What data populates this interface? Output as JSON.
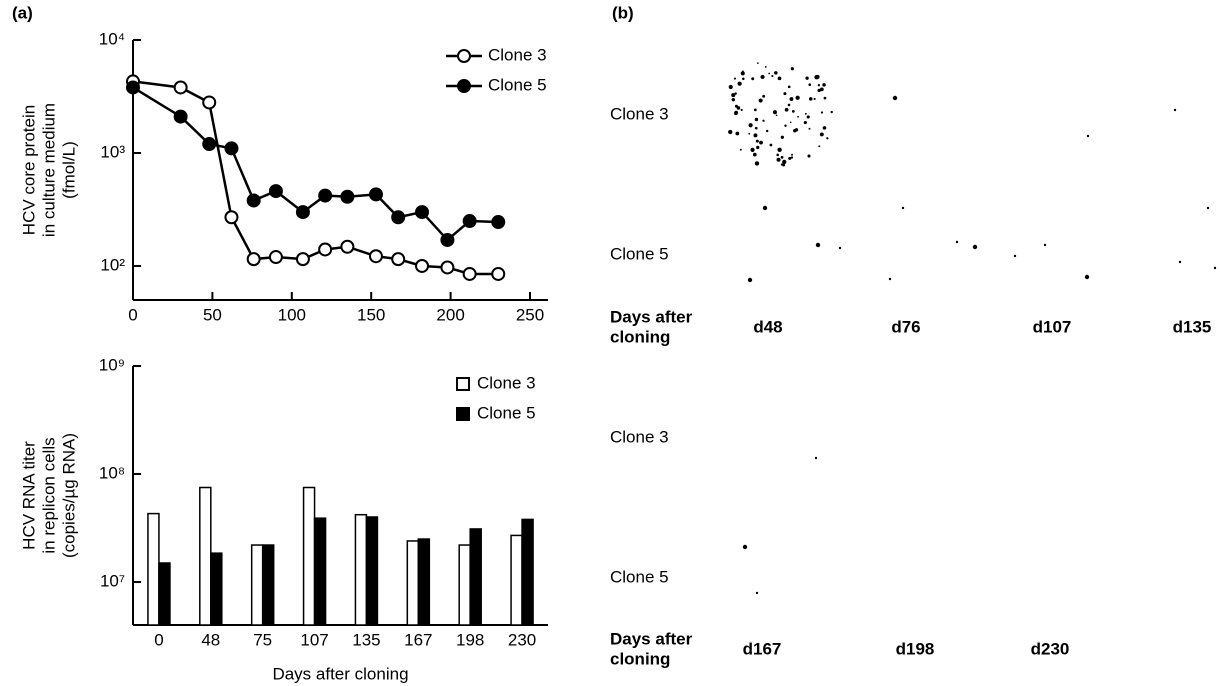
{
  "panel_a_label": "(a)",
  "chart_data": [
    {
      "type": "line",
      "y_label": [
        "HCV core protein",
        "in culture medium",
        "(fmol/L)"
      ],
      "log_y": true,
      "xlim": [
        0,
        250
      ],
      "xticks": [
        0,
        50,
        100,
        150,
        200,
        250
      ],
      "ylim": [
        50,
        10000
      ],
      "yticks": [
        {
          "value": 100,
          "label": "10²"
        },
        {
          "value": 1000,
          "label": "10³"
        },
        {
          "value": 10000,
          "label": "10⁴"
        }
      ],
      "legend": "top-right",
      "x": [
        0,
        30,
        48,
        62,
        76,
        90,
        107,
        121,
        135,
        153,
        167,
        182,
        198,
        212,
        230
      ],
      "series": [
        {
          "name": "Clone 3",
          "color": "#000000",
          "marker": "open",
          "values": [
            4300,
            3800,
            2800,
            270,
            115,
            120,
            115,
            140,
            148,
            122,
            115,
            100,
            97,
            85,
            85
          ]
        },
        {
          "name": "Clone 5",
          "color": "#000000",
          "marker": "filled",
          "values": [
            3800,
            2100,
            1200,
            1100,
            380,
            460,
            300,
            420,
            410,
            430,
            270,
            300,
            170,
            250,
            245
          ]
        }
      ]
    },
    {
      "type": "bar",
      "y_label": [
        "HCV RNA titer",
        "in replicon cells",
        "(copies/µg RNA)"
      ],
      "x_label": "Days after cloning",
      "log_y": true,
      "ylim": [
        4000000,
        1000000000
      ],
      "yticks": [
        {
          "value": 10000000,
          "label": "10⁷"
        },
        {
          "value": 100000000,
          "label": "10⁸"
        },
        {
          "value": 1000000000,
          "label": "10⁹"
        }
      ],
      "legend": "top-right",
      "categories": [
        "0",
        "48",
        "75",
        "107",
        "135",
        "167",
        "198",
        "230"
      ],
      "series": [
        {
          "name": "Clone 3",
          "color": "#ffffff",
          "values": [
            43000000,
            75000000,
            22000000,
            75000000,
            42000000,
            24000000,
            22000000,
            27000000
          ]
        },
        {
          "name": "Clone 5",
          "color": "#000000",
          "values": [
            15000000,
            18500000,
            22000000,
            39000000,
            40000000,
            25000000,
            31000000,
            38000000
          ]
        }
      ]
    }
  ],
  "panel_b": {
    "label": "(b)",
    "blocks": [
      {
        "row_labels": [
          "Clone 3",
          "Clone 5"
        ],
        "x_label": [
          "Days after",
          "cloning"
        ],
        "columns": [
          "d48",
          "d76",
          "d107",
          "d135"
        ]
      },
      {
        "row_labels": [
          "Clone 3",
          "Clone 5"
        ],
        "x_label": [
          "Days after",
          "cloning"
        ],
        "columns": [
          "d167",
          "d198",
          "d230"
        ]
      }
    ]
  }
}
